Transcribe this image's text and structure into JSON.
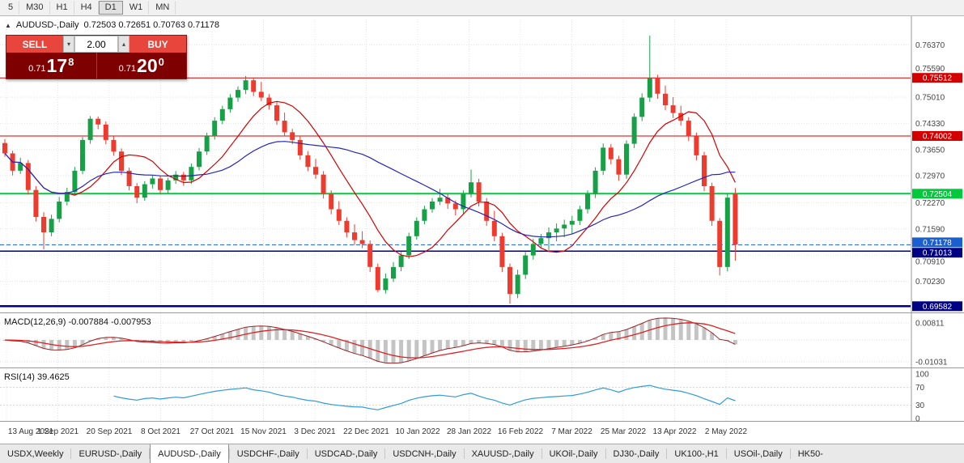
{
  "toolbar": {
    "timeframes": [
      "5",
      "M30",
      "H1",
      "H4",
      "D1",
      "W1",
      "MN"
    ],
    "active": "D1"
  },
  "chart_header": {
    "collapse_icon": "▲",
    "symbol_period": "AUDUSD-,Daily",
    "ohlc": "0.72503 0.72651 0.70763 0.71178"
  },
  "trade_panel": {
    "sell_label": "SELL",
    "buy_label": "BUY",
    "volume": "2.00",
    "sell_price_small": "0.71",
    "sell_price_big": "17",
    "sell_price_sup": "8",
    "buy_price_small": "0.71",
    "buy_price_big": "20",
    "buy_price_sup": "0"
  },
  "chart_data": {
    "type": "candlestick",
    "symbol": "AUDUSD-",
    "period": "Daily",
    "y_min": 0.6942,
    "y_max": 0.7703,
    "up_color": "#16a147",
    "down_color": "#ee3b2e",
    "candles": [
      [
        0.7382,
        0.7392,
        0.7346,
        0.7355
      ],
      [
        0.7355,
        0.7362,
        0.7298,
        0.731
      ],
      [
        0.731,
        0.7344,
        0.7302,
        0.733
      ],
      [
        0.733,
        0.7338,
        0.7248,
        0.726
      ],
      [
        0.726,
        0.727,
        0.7178,
        0.719
      ],
      [
        0.719,
        0.7202,
        0.7106,
        0.715
      ],
      [
        0.715,
        0.7196,
        0.714,
        0.7185
      ],
      [
        0.7185,
        0.7242,
        0.7176,
        0.723
      ],
      [
        0.723,
        0.7266,
        0.722,
        0.7255
      ],
      [
        0.7255,
        0.732,
        0.7246,
        0.731
      ],
      [
        0.731,
        0.7398,
        0.7301,
        0.739
      ],
      [
        0.739,
        0.7452,
        0.738,
        0.7445
      ],
      [
        0.7445,
        0.7451,
        0.7418,
        0.743
      ],
      [
        0.743,
        0.7438,
        0.7379,
        0.739
      ],
      [
        0.739,
        0.7399,
        0.7349,
        0.736
      ],
      [
        0.736,
        0.7368,
        0.7299,
        0.731
      ],
      [
        0.731,
        0.7318,
        0.7259,
        0.727
      ],
      [
        0.727,
        0.7278,
        0.7226,
        0.724
      ],
      [
        0.724,
        0.7283,
        0.7232,
        0.7275
      ],
      [
        0.7275,
        0.7298,
        0.7264,
        0.729
      ],
      [
        0.729,
        0.7297,
        0.7249,
        0.726
      ],
      [
        0.726,
        0.7292,
        0.7251,
        0.7285
      ],
      [
        0.7285,
        0.7309,
        0.7276,
        0.73
      ],
      [
        0.73,
        0.7307,
        0.7271,
        0.7285
      ],
      [
        0.7285,
        0.7329,
        0.7276,
        0.732
      ],
      [
        0.732,
        0.7369,
        0.7311,
        0.736
      ],
      [
        0.736,
        0.7409,
        0.7351,
        0.74
      ],
      [
        0.74,
        0.7449,
        0.7391,
        0.744
      ],
      [
        0.744,
        0.7479,
        0.7431,
        0.747
      ],
      [
        0.747,
        0.7509,
        0.7461,
        0.75
      ],
      [
        0.75,
        0.7529,
        0.7489,
        0.752
      ],
      [
        0.752,
        0.7556,
        0.7509,
        0.7545
      ],
      [
        0.7545,
        0.7552,
        0.7504,
        0.7515
      ],
      [
        0.7515,
        0.7541,
        0.7491,
        0.75
      ],
      [
        0.75,
        0.7509,
        0.7469,
        0.748
      ],
      [
        0.748,
        0.7489,
        0.7429,
        0.744
      ],
      [
        0.744,
        0.7461,
        0.7399,
        0.741
      ],
      [
        0.741,
        0.7419,
        0.7379,
        0.739
      ],
      [
        0.739,
        0.7399,
        0.7339,
        0.735
      ],
      [
        0.735,
        0.7361,
        0.7309,
        0.732
      ],
      [
        0.732,
        0.7341,
        0.7289,
        0.73
      ],
      [
        0.73,
        0.7309,
        0.7238,
        0.725
      ],
      [
        0.725,
        0.7259,
        0.7197,
        0.721
      ],
      [
        0.721,
        0.7231,
        0.7169,
        0.718
      ],
      [
        0.718,
        0.7189,
        0.7137,
        0.715
      ],
      [
        0.715,
        0.7171,
        0.7117,
        0.713
      ],
      [
        0.713,
        0.7153,
        0.7109,
        0.712
      ],
      [
        0.712,
        0.7129,
        0.7047,
        0.706
      ],
      [
        0.706,
        0.7069,
        0.6995,
        0.7
      ],
      [
        0.7,
        0.7043,
        0.6991,
        0.703
      ],
      [
        0.703,
        0.7073,
        0.7021,
        0.706
      ],
      [
        0.706,
        0.7099,
        0.7049,
        0.709
      ],
      [
        0.709,
        0.7149,
        0.7081,
        0.714
      ],
      [
        0.714,
        0.7189,
        0.7131,
        0.718
      ],
      [
        0.718,
        0.7219,
        0.7171,
        0.721
      ],
      [
        0.721,
        0.7239,
        0.7201,
        0.723
      ],
      [
        0.723,
        0.7263,
        0.7221,
        0.724
      ],
      [
        0.724,
        0.7249,
        0.7211,
        0.7225
      ],
      [
        0.7225,
        0.7233,
        0.7194,
        0.721
      ],
      [
        0.721,
        0.7259,
        0.7199,
        0.725
      ],
      [
        0.725,
        0.7313,
        0.7241,
        0.728
      ],
      [
        0.728,
        0.7289,
        0.7217,
        0.723
      ],
      [
        0.723,
        0.7239,
        0.7167,
        0.718
      ],
      [
        0.718,
        0.7206,
        0.7127,
        0.714
      ],
      [
        0.714,
        0.7149,
        0.7047,
        0.706
      ],
      [
        0.706,
        0.7069,
        0.6965,
        0.699
      ],
      [
        0.699,
        0.7053,
        0.6979,
        0.704
      ],
      [
        0.704,
        0.7099,
        0.7029,
        0.709
      ],
      [
        0.709,
        0.7133,
        0.7079,
        0.712
      ],
      [
        0.712,
        0.7146,
        0.7109,
        0.7135
      ],
      [
        0.7135,
        0.7163,
        0.7104,
        0.715
      ],
      [
        0.715,
        0.7173,
        0.7127,
        0.716
      ],
      [
        0.716,
        0.7183,
        0.7137,
        0.717
      ],
      [
        0.717,
        0.7193,
        0.7147,
        0.718
      ],
      [
        0.718,
        0.7219,
        0.7169,
        0.721
      ],
      [
        0.721,
        0.7259,
        0.7199,
        0.725
      ],
      [
        0.725,
        0.7319,
        0.7239,
        0.731
      ],
      [
        0.731,
        0.7381,
        0.7299,
        0.737
      ],
      [
        0.737,
        0.7379,
        0.7327,
        0.734
      ],
      [
        0.734,
        0.7349,
        0.7284,
        0.73
      ],
      [
        0.73,
        0.7389,
        0.7289,
        0.738
      ],
      [
        0.738,
        0.7459,
        0.7369,
        0.745
      ],
      [
        0.745,
        0.7511,
        0.7439,
        0.75
      ],
      [
        0.75,
        0.7661,
        0.7489,
        0.755
      ],
      [
        0.755,
        0.7559,
        0.7497,
        0.751
      ],
      [
        0.751,
        0.7531,
        0.7467,
        0.748
      ],
      [
        0.748,
        0.7501,
        0.7447,
        0.746
      ],
      [
        0.746,
        0.7479,
        0.7427,
        0.744
      ],
      [
        0.744,
        0.7449,
        0.7387,
        0.74
      ],
      [
        0.74,
        0.7409,
        0.7337,
        0.735
      ],
      [
        0.735,
        0.7359,
        0.7257,
        0.727
      ],
      [
        0.727,
        0.7279,
        0.7167,
        0.718
      ],
      [
        0.718,
        0.7187,
        0.7038,
        0.706
      ],
      [
        0.706,
        0.7252,
        0.7049,
        0.724
      ],
      [
        0.72503,
        0.72651,
        0.70763,
        0.71178
      ]
    ],
    "x_labels": [
      "13 Aug 2021",
      "1 Sep 2021",
      "20 Sep 2021",
      "8 Oct 2021",
      "27 Oct 2021",
      "15 Nov 2021",
      "3 Dec 2021",
      "22 Dec 2021",
      "10 Jan 2022",
      "28 Jan 2022",
      "16 Feb 2022",
      "7 Mar 2022",
      "25 Mar 2022",
      "13 Apr 2022",
      "2 May 2022"
    ],
    "y_axis_labels": [
      "0.76370",
      "0.75590",
      "0.75010",
      "0.74330",
      "0.73650",
      "0.72970",
      "0.72270",
      "0.71590",
      "0.70910",
      "0.70230"
    ],
    "tag_lines": [
      {
        "price": 0.75512,
        "label": "0.75512",
        "color": "#d40000",
        "width": 1
      },
      {
        "price": 0.74002,
        "label": "0.74002",
        "color": "#d40000",
        "width": 1
      },
      {
        "price": 0.72504,
        "label": "0.72504",
        "color": "#00c93c",
        "width": 2
      },
      {
        "price": 0.71178,
        "label": "0.71178",
        "color": "#1a5fd0",
        "width": 1,
        "dashed": true,
        "nudge": -3
      },
      {
        "price": 0.71013,
        "label": "0.71013",
        "color": "#000085",
        "width": 1.5,
        "nudge": 2
      },
      {
        "price": 0.69582,
        "label": "0.69582",
        "color": "#000085",
        "width": 2.5
      }
    ],
    "moving_averages": [
      {
        "period": 9,
        "color": "#d40000"
      },
      {
        "period": 26,
        "color": "#2626b8"
      }
    ],
    "macd": {
      "label": "MACD(12,26,9)",
      "value_main": "-0.007884",
      "value_signal": "-0.007953",
      "axis_labels": [
        "0.00811",
        "-0.01031"
      ],
      "fast": 12,
      "slow": 26,
      "signal": 9,
      "histogram_color": "#c4c4c4",
      "main_color": "#9b2226",
      "signal_color": "#e02020"
    },
    "rsi": {
      "label": "RSI(14)",
      "value": "39.4625",
      "period": 14,
      "axis_labels": [
        "100",
        "70",
        "30",
        "0"
      ],
      "line_color": "#2f9bdb"
    }
  },
  "tabs": {
    "items": [
      "USDX,Weekly",
      "EURUSD-,Daily",
      "AUDUSD-,Daily",
      "USDCHF-,Daily",
      "USDCAD-,Daily",
      "USDCNH-,Daily",
      "XAUUSD-,Daily",
      "UKOil-,Daily",
      "DJ30-,Daily",
      "UK100-,H1",
      "USOil-,Daily",
      "HK50-"
    ],
    "active_index": 2
  }
}
